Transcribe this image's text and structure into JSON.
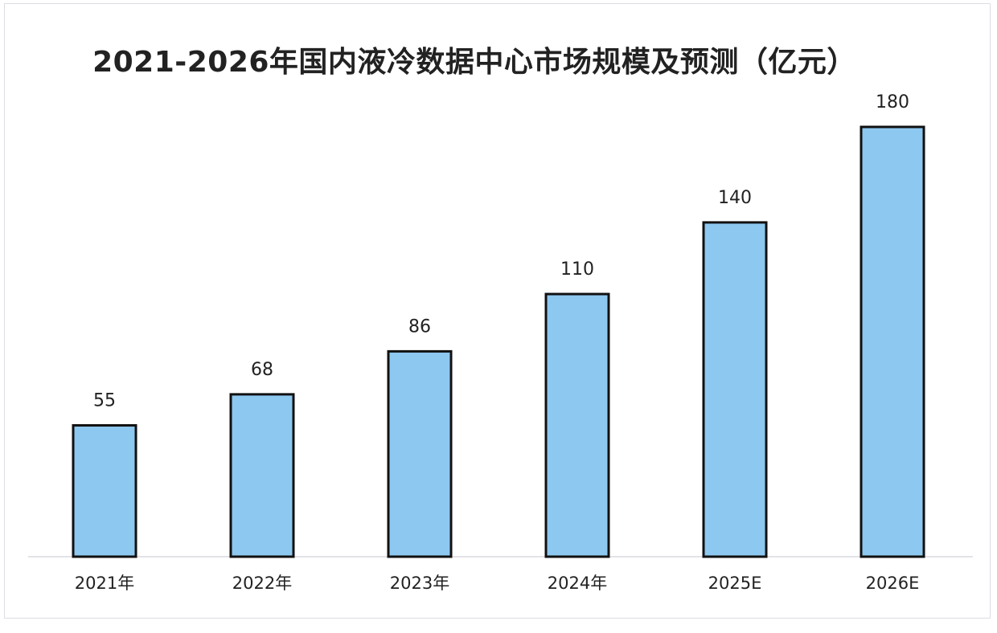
{
  "chart_data": {
    "type": "bar",
    "title": "2021-2026年国内液冷数据中心市场规模及预测（亿元）",
    "xlabel": "",
    "ylabel": "",
    "categories": [
      "2021年",
      "2022年",
      "2023年",
      "2024年",
      "2025E",
      "2026E"
    ],
    "series": [
      {
        "values": [
          55,
          68,
          86,
          110,
          140,
          180
        ]
      }
    ],
    "ylim": [
      0,
      180
    ],
    "grid": false,
    "legend": "none",
    "data_labels": true,
    "colors": {
      "bar_fill": "#8dc8f0",
      "bar_stroke": "#111111",
      "axis": "#d9d9e0",
      "text": "#222222"
    }
  }
}
